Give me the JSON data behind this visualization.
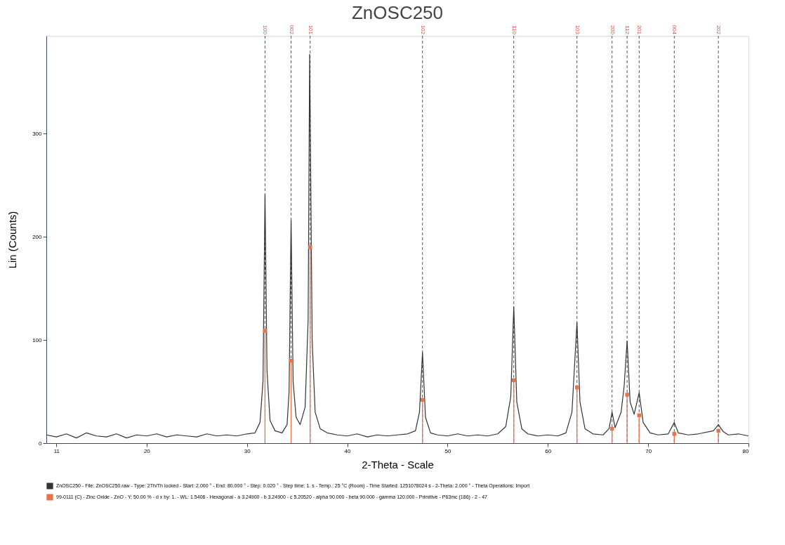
{
  "chart_data": {
    "type": "line",
    "title": "ZnOSC250",
    "xlabel": "2-Theta - Scale",
    "ylabel": "Lin (Counts)",
    "xlim": [
      10,
      80
    ],
    "xticks": [
      11,
      20,
      30,
      40,
      50,
      60,
      70,
      80
    ],
    "ylim": [
      0,
      395
    ],
    "yticks": [
      0,
      100,
      200,
      300
    ],
    "grid": false,
    "legend": "bottom",
    "line_style": "solid",
    "series": [
      {
        "name": "ZnOSC250 - File: ZnOSC250.raw - Type: 2Th/Th locked - Start: 2.000 ° - End: 80.000 ° - Step: 0.020 ° - Step time: 1. s - Temp.: 25 °C (Room) - Time Started: 1251078024 s - 2-Theta: 2.000 ° - Theta Operations: Import",
        "color": "#333333",
        "marker": "none",
        "x": [
          10,
          11,
          12,
          13,
          14,
          15,
          16,
          17,
          18,
          19,
          20,
          21,
          22,
          23,
          24,
          25,
          26,
          27,
          28,
          29,
          30,
          30.8,
          31.3,
          31.6,
          31.8,
          32.0,
          32.3,
          32.8,
          33.5,
          34.0,
          34.2,
          34.4,
          34.6,
          34.9,
          35.3,
          35.8,
          36.1,
          36.25,
          36.5,
          36.8,
          37.3,
          38,
          39,
          40,
          41,
          42,
          43,
          44,
          45,
          46,
          46.8,
          47.2,
          47.5,
          47.8,
          48.3,
          49,
          50,
          51,
          52,
          53,
          54,
          55,
          55.8,
          56.3,
          56.6,
          56.9,
          57.4,
          58,
          59,
          60,
          61,
          61.8,
          62.4,
          62.9,
          63.2,
          63.7,
          64.5,
          65.5,
          66.1,
          66.4,
          66.7,
          67.3,
          67.6,
          67.9,
          68.2,
          68.6,
          69.1,
          69.5,
          70.2,
          71,
          72,
          72.6,
          73,
          74,
          75,
          76.5,
          77.0,
          77.5,
          78,
          79,
          80
        ],
        "values": [
          8,
          6,
          9,
          5,
          10,
          7,
          6,
          9,
          5,
          8,
          7,
          9,
          6,
          8,
          7,
          6,
          9,
          7,
          8,
          7,
          9,
          10,
          20,
          60,
          241,
          70,
          22,
          12,
          10,
          18,
          50,
          216,
          60,
          25,
          18,
          35,
          120,
          377,
          100,
          30,
          14,
          10,
          8,
          7,
          9,
          6,
          8,
          7,
          8,
          9,
          12,
          30,
          88,
          25,
          10,
          8,
          7,
          9,
          7,
          8,
          7,
          9,
          16,
          45,
          132,
          40,
          14,
          9,
          7,
          8,
          7,
          10,
          30,
          117,
          40,
          14,
          9,
          8,
          14,
          30,
          15,
          30,
          55,
          99,
          40,
          28,
          49,
          20,
          10,
          8,
          9,
          20,
          10,
          8,
          9,
          12,
          18,
          11,
          8,
          9,
          7
        ]
      },
      {
        "name": "99-0111 (C) - Zinc Oxide - ZnO - Y: 50.00 % - d x by: 1. - WL: 1.5406 - Hexagonal - a 3.24900 - b 3.24900 - c 5.20520 - alpha 90.000 - beta 90.000 - gamma 120.000 - Primitive - P63mc (186) - 2 - 47",
        "color": "#e8734a",
        "type": "lollipop",
        "marker": "square",
        "x": [
          31.8,
          34.4,
          36.3,
          47.5,
          56.6,
          62.9,
          66.4,
          67.9,
          69.1,
          72.6,
          77.0
        ],
        "values": [
          109,
          80,
          190,
          42,
          61,
          54,
          14,
          47,
          27,
          9,
          12
        ]
      }
    ],
    "ref_lines": [
      {
        "axis": "x",
        "value": 31.8,
        "color": "#555555",
        "line_style": "dashed"
      },
      {
        "axis": "x",
        "value": 34.4,
        "color": "#555555",
        "line_style": "dashed"
      },
      {
        "axis": "x",
        "value": 36.3,
        "color": "#555555",
        "line_style": "dashed"
      },
      {
        "axis": "x",
        "value": 47.5,
        "color": "#555555",
        "line_style": "dashed"
      },
      {
        "axis": "x",
        "value": 56.6,
        "color": "#555555",
        "line_style": "dashed"
      },
      {
        "axis": "x",
        "value": 62.9,
        "color": "#555555",
        "line_style": "dashed"
      },
      {
        "axis": "x",
        "value": 66.4,
        "color": "#555555",
        "line_style": "dashed"
      },
      {
        "axis": "x",
        "value": 67.9,
        "color": "#555555",
        "line_style": "dashed"
      },
      {
        "axis": "x",
        "value": 69.1,
        "color": "#555555",
        "line_style": "dashed"
      },
      {
        "axis": "x",
        "value": 72.6,
        "color": "#555555",
        "line_style": "dashed"
      },
      {
        "axis": "x",
        "value": 77.0,
        "color": "#555555",
        "line_style": "dashed"
      }
    ],
    "annotations": [
      {
        "text": "100",
        "x": 31.8,
        "y": 395
      },
      {
        "text": "002",
        "x": 34.4,
        "y": 395
      },
      {
        "text": "101",
        "x": 36.3,
        "y": 395
      },
      {
        "text": "102",
        "x": 47.5,
        "y": 395
      },
      {
        "text": "110",
        "x": 56.6,
        "y": 395
      },
      {
        "text": "103",
        "x": 62.9,
        "y": 395
      },
      {
        "text": "200",
        "x": 66.4,
        "y": 395
      },
      {
        "text": "112",
        "x": 67.9,
        "y": 395
      },
      {
        "text": "201",
        "x": 69.1,
        "y": 395
      },
      {
        "text": "004",
        "x": 72.6,
        "y": 395
      },
      {
        "text": "202",
        "x": 77.0,
        "y": 395
      }
    ]
  }
}
